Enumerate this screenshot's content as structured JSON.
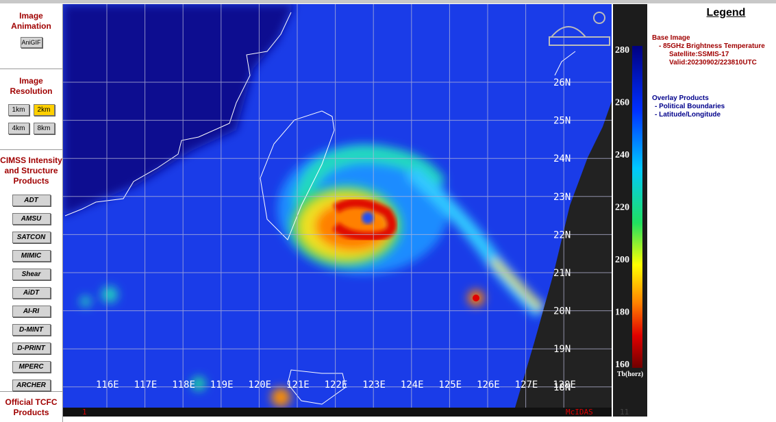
{
  "sidebar": {
    "animation": {
      "title": "Image Animation",
      "buttons": [
        "AniGIF"
      ]
    },
    "resolution": {
      "title": "Image Resolution",
      "buttons": [
        "1km",
        "2km",
        "4km",
        "8km"
      ]
    },
    "products": {
      "title": "CIMSS Intensity and Structure Products",
      "buttons": [
        "ADT",
        "AMSU",
        "SATCON",
        "MIMIC",
        "Shear",
        "AiDT",
        "AI-RI",
        "D-MINT",
        "D-PRINT",
        "MPERC",
        "ARCHER"
      ]
    },
    "official": {
      "title": "Official TCFC Products"
    }
  },
  "image": {
    "latitudes": [
      "26N",
      "25N",
      "24N",
      "23N",
      "22N",
      "21N",
      "20N",
      "19N",
      "18N"
    ],
    "longitudes": [
      "116E",
      "117E",
      "118E",
      "119E",
      "120E",
      "121E",
      "122E",
      "123E",
      "124E",
      "125E",
      "126E",
      "127E",
      "128E"
    ],
    "footer": [
      "1",
      "McIDAS",
      "11"
    ]
  },
  "colorbar": {
    "ticks": [
      280,
      260,
      240,
      220,
      200,
      180,
      160
    ],
    "unit": "Tb(horz)"
  },
  "legend": {
    "title": "Legend",
    "base": [
      "Base Image",
      "- 85GHz Brightness Temperature",
      "Satellite:SSMIS-17",
      "Valid:20230902/223810UTC"
    ],
    "overlay": [
      "Overlay Products",
      "- Political Boundaries",
      "- Latitude/Longitude"
    ]
  }
}
